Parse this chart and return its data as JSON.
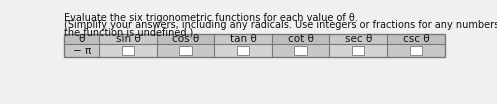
{
  "title_line1": "Evaluate the six trigonometric functions for each value of θ.",
  "title_line2": "(Simplify your answers, including any radicals. Use integers or fractions for any numbers in the expressions,",
  "title_line3": "the function is undefined.)",
  "headers": [
    "θ",
    "sin θ",
    "cos θ",
    "tan θ",
    "cot θ",
    "sec θ",
    "csc θ"
  ],
  "row_label": "− π",
  "bg_color": "#f0f0f0",
  "table_bg": "#ffffff",
  "col_shading_odd": "#d8d8d8",
  "col_shading_even": "#e8e8e8",
  "header_bg": "#c8c8c8",
  "cell_fill": "#ffffff",
  "border_color": "#888888",
  "text_color": "#111111",
  "header_fontsize": 7.5,
  "body_fontsize": 7.5,
  "title_fontsize": 7.0
}
